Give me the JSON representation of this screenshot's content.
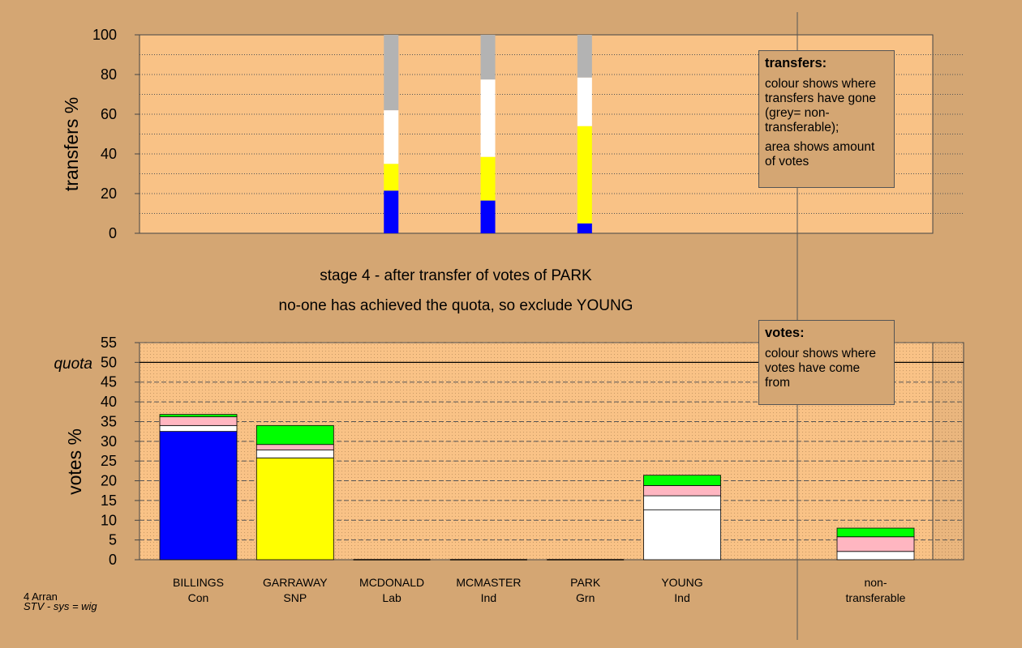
{
  "stage_title": "stage 4 - after transfer of votes of PARK",
  "stage_subtitle": "no-one has achieved the quota, so exclude YOUNG",
  "transfers_legend": {
    "title": "transfers:",
    "line1": "colour shows where transfers have gone (grey= non-transferable);",
    "line2": "area shows amount of votes"
  },
  "votes_legend": {
    "title": "votes:",
    "line1": "colour shows where votes have come from"
  },
  "footer": {
    "line1": "4 Arran",
    "line2": "STV - sys = wig"
  },
  "colors": {
    "background": "#d4a673",
    "plot_area": "#f9c286",
    "conservative": "#0000ff",
    "snp": "#ffff00",
    "independent": "#ffffff",
    "green": "#00ff00",
    "pink": "#ffb6c1",
    "non_transferable": "#b3b3b3"
  },
  "chart_data": [
    {
      "type": "bar",
      "subtype": "stacked-100",
      "ylabel": "transfers %",
      "ylim": [
        0,
        100
      ],
      "yticks": [
        0,
        20,
        40,
        60,
        80,
        100
      ],
      "grid": true,
      "categories": [
        "BILLINGS Con",
        "GARRAWAY SNP",
        "MCDONALD Lab",
        "MCMASTER Ind",
        "PARK Grn",
        "YOUNG Ind",
        "non-transferable"
      ],
      "transfer_bars": [
        {
          "slot": 2.5,
          "segments": [
            {
              "color": "#0000ff",
              "value": 21.5
            },
            {
              "color": "#ffff00",
              "value": 13.5
            },
            {
              "color": "#ffffff",
              "value": 27
            },
            {
              "color": "#b3b3b3",
              "value": 38
            }
          ]
        },
        {
          "slot": 3.5,
          "segments": [
            {
              "color": "#0000ff",
              "value": 16.5
            },
            {
              "color": "#ffff00",
              "value": 22
            },
            {
              "color": "#ffffff",
              "value": 39
            },
            {
              "color": "#b3b3b3",
              "value": 22.5
            }
          ]
        },
        {
          "slot": 4.5,
          "segments": [
            {
              "color": "#0000ff",
              "value": 5
            },
            {
              "color": "#ffff00",
              "value": 49
            },
            {
              "color": "#ffffff",
              "value": 24.5
            },
            {
              "color": "#b3b3b3",
              "value": 21.5
            }
          ]
        }
      ]
    },
    {
      "type": "bar",
      "subtype": "stacked",
      "ylabel": "votes %",
      "ylim": [
        0,
        55
      ],
      "yticks": [
        0,
        5,
        10,
        15,
        20,
        25,
        30,
        35,
        40,
        45,
        50,
        55
      ],
      "quota": 50,
      "quota_label": "quota",
      "grid": true,
      "candidates": [
        {
          "name": "BILLINGS",
          "party": "Con",
          "segments": [
            {
              "color": "#0000ff",
              "value": 32.5
            },
            {
              "color": "#ffffff",
              "value": 1.5
            },
            {
              "color": "#ffb6c1",
              "value": 2.2
            },
            {
              "color": "#00ff00",
              "value": 0.6
            }
          ]
        },
        {
          "name": "GARRAWAY",
          "party": "SNP",
          "segments": [
            {
              "color": "#ffff00",
              "value": 25.8
            },
            {
              "color": "#ffffff",
              "value": 2.0
            },
            {
              "color": "#ffb6c1",
              "value": 1.4
            },
            {
              "color": "#00ff00",
              "value": 4.8
            }
          ]
        },
        {
          "name": "MCDONALD",
          "party": "Lab",
          "segments": []
        },
        {
          "name": "MCMASTER",
          "party": "Ind",
          "segments": []
        },
        {
          "name": "PARK",
          "party": "Grn",
          "segments": []
        },
        {
          "name": "YOUNG",
          "party": "Ind",
          "segments": [
            {
              "color": "#ffffff",
              "value": 12.6
            },
            {
              "color": "#ffffff",
              "value": 3.6
            },
            {
              "color": "#ffb6c1",
              "value": 2.6
            },
            {
              "color": "#00ff00",
              "value": 2.6
            }
          ]
        },
        {
          "name": "non-",
          "party": "transferable",
          "segments": [
            {
              "color": "#ffffff",
              "value": 2.1
            },
            {
              "color": "#ffb6c1",
              "value": 3.7
            },
            {
              "color": "#00ff00",
              "value": 2.2
            }
          ]
        }
      ]
    }
  ]
}
